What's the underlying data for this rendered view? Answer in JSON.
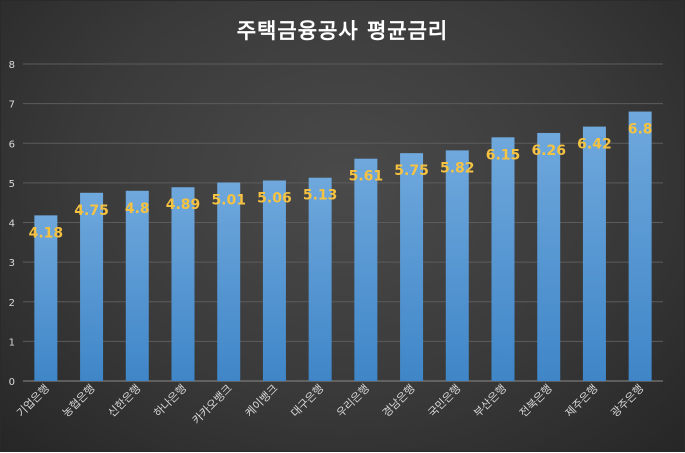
{
  "chart_data": {
    "type": "bar",
    "title": "주택금융공사 평균금리",
    "categories": [
      "기업은행",
      "농협은행",
      "신한은행",
      "하나은행",
      "카카오뱅크",
      "케이뱅크",
      "대구은행",
      "우리은행",
      "경남은행",
      "국민은행",
      "부산은행",
      "전북은행",
      "제주은행",
      "광주은행"
    ],
    "values": [
      4.18,
      4.75,
      4.8,
      4.89,
      5.01,
      5.06,
      5.13,
      5.61,
      5.75,
      5.82,
      6.15,
      6.26,
      6.42,
      6.8
    ],
    "data_labels": [
      "4.18",
      "4.75",
      "4.8",
      "4.89",
      "5.01",
      "5.06",
      "5.13",
      "5.61",
      "5.75",
      "5.82",
      "6.15",
      "6.26",
      "6.42",
      "6.8"
    ],
    "y_ticks": [
      "0",
      "1",
      "2",
      "3",
      "4",
      "5",
      "6",
      "7",
      "8"
    ],
    "ylim": [
      0,
      8
    ],
    "grid": true,
    "bar_color": "#5b9bd5",
    "label_color": "#f5c242"
  }
}
